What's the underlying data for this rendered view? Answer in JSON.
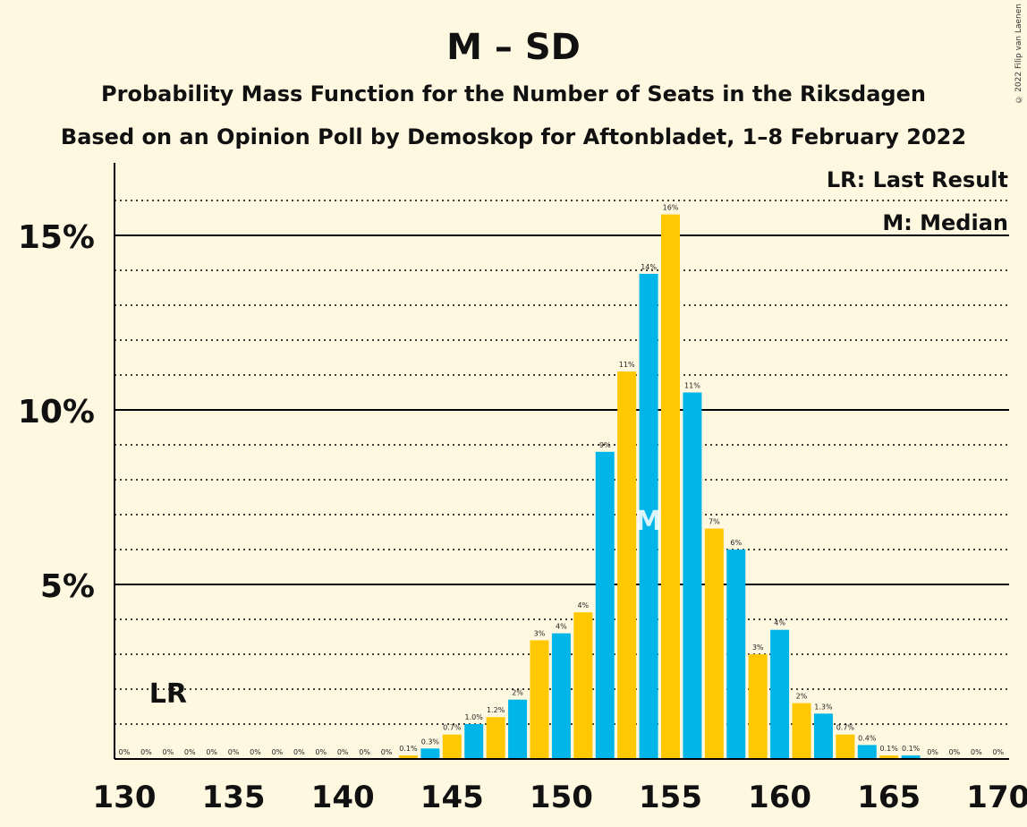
{
  "title": "M – SD",
  "subtitle1": "Probability Mass Function for the Number of Seats in the Riksdagen",
  "subtitle2": "Based on an Opinion Poll by Demoskop for Aftonbladet, 1–8 February 2022",
  "copyright": "© 2022 Filip van Laenen",
  "legend": {
    "lr": "LR: Last Result",
    "m": "M: Median"
  },
  "markers": {
    "lr_label": "LR",
    "median_label": "M"
  },
  "colors": {
    "background": "#fff8e1",
    "blue": "#00b6e8",
    "yellow": "#ffc800"
  },
  "chart_data": {
    "type": "bar",
    "x": [
      130,
      131,
      132,
      133,
      134,
      135,
      136,
      137,
      138,
      139,
      140,
      141,
      142,
      143,
      144,
      145,
      146,
      147,
      148,
      149,
      150,
      151,
      152,
      153,
      154,
      155,
      156,
      157,
      158,
      159,
      160,
      161,
      162,
      163,
      164,
      165,
      166,
      167,
      168,
      169,
      170
    ],
    "values": [
      0,
      0,
      0,
      0,
      0,
      0,
      0,
      0,
      0,
      0,
      0,
      0,
      0,
      0.1,
      0.3,
      0.7,
      1.0,
      1.2,
      1.7,
      3.4,
      3.6,
      4.2,
      8.8,
      11.1,
      13.9,
      15.6,
      10.5,
      6.6,
      6.0,
      3.0,
      3.7,
      1.6,
      1.3,
      0.7,
      0.4,
      0.1,
      0.1,
      0,
      0,
      0,
      0
    ],
    "data_labels": [
      "0%",
      "0%",
      "0%",
      "0%",
      "0%",
      "0%",
      "0%",
      "0%",
      "0%",
      "0%",
      "0%",
      "0%",
      "0%",
      "0.1%",
      "0.3%",
      "0.7%",
      "1.0%",
      "1.2%",
      "2%",
      "3%",
      "4%",
      "4%",
      "9%",
      "11%",
      "14%",
      "16%",
      "11%",
      "7%",
      "6%",
      "3%",
      "4%",
      "2%",
      "1.3%",
      "0.7%",
      "0.4%",
      "0.1%",
      "0.1%",
      "0%",
      "0%",
      "0%",
      "0%"
    ],
    "last_result": 132,
    "median": 154,
    "x_ticks": [
      130,
      135,
      140,
      145,
      150,
      155,
      160,
      165,
      170
    ],
    "y_ticks": [
      {
        "value": 5,
        "label": "5%"
      },
      {
        "value": 10,
        "label": "10%"
      },
      {
        "value": 15,
        "label": "15%"
      }
    ],
    "ylim": [
      0,
      16.5
    ],
    "xlim": [
      129.5,
      170.5
    ],
    "grid": "dotted minor every 1%, solid major every 5%",
    "legend_position": "top-right"
  }
}
